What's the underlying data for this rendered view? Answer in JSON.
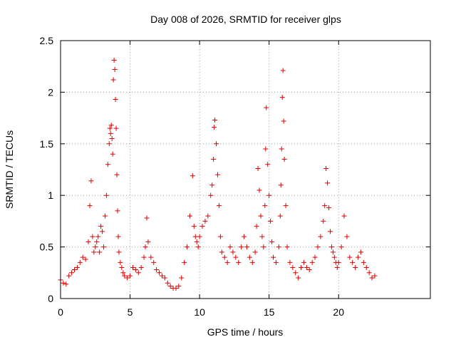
{
  "chart_data": {
    "type": "scatter",
    "title": "Day 008 of 2026, SRMTID for receiver glps",
    "xlabel": "GPS time / hours",
    "ylabel": "SRMTID / TECUs",
    "xlim": [
      0,
      26.6
    ],
    "ylim": [
      0,
      2.5
    ],
    "xticks": [
      0,
      5,
      10,
      15,
      20
    ],
    "yticks": [
      0,
      0.5,
      1,
      1.5,
      2,
      2.5
    ],
    "xtick_labels": [
      "0",
      "5",
      "10",
      "15",
      "20"
    ],
    "ytick_labels": [
      "0",
      "0.5",
      "1",
      "1.5",
      "2",
      "2.5"
    ],
    "grid": true,
    "marker": "+",
    "color": "#e00000",
    "series": [
      {
        "name": "SRMTID",
        "x": [
          0.0,
          0.2,
          0.4,
          0.6,
          0.8,
          1.0,
          1.2,
          1.4,
          1.6,
          1.8,
          2.0,
          2.1,
          2.2,
          2.3,
          2.4,
          2.5,
          2.6,
          2.7,
          2.8,
          2.9,
          3.0,
          3.1,
          3.2,
          3.3,
          3.4,
          3.5,
          3.55,
          3.6,
          3.65,
          3.7,
          3.75,
          3.8,
          3.85,
          3.9,
          3.95,
          4.0,
          4.05,
          4.1,
          4.15,
          4.2,
          4.3,
          4.4,
          4.5,
          4.6,
          4.8,
          5.0,
          5.2,
          5.4,
          5.6,
          5.8,
          6.0,
          6.1,
          6.2,
          6.3,
          6.5,
          6.7,
          6.9,
          7.1,
          7.3,
          7.5,
          7.7,
          7.9,
          8.1,
          8.3,
          8.5,
          8.7,
          8.9,
          9.1,
          9.3,
          9.5,
          9.6,
          9.7,
          9.8,
          9.9,
          10.0,
          10.2,
          10.4,
          10.6,
          10.8,
          10.9,
          11.0,
          11.05,
          11.1,
          11.2,
          11.3,
          11.4,
          11.5,
          11.6,
          11.8,
          12.0,
          12.2,
          12.4,
          12.6,
          12.8,
          13.0,
          13.2,
          13.4,
          13.6,
          13.8,
          14.0,
          14.1,
          14.2,
          14.3,
          14.4,
          14.5,
          14.6,
          14.7,
          14.75,
          14.8,
          14.9,
          15.0,
          15.1,
          15.2,
          15.3,
          15.5,
          15.7,
          15.8,
          15.85,
          15.9,
          15.95,
          16.0,
          16.05,
          16.1,
          16.2,
          16.3,
          16.5,
          16.7,
          16.9,
          17.1,
          17.3,
          17.5,
          17.7,
          17.9,
          18.1,
          18.3,
          18.5,
          18.7,
          18.9,
          19.0,
          19.1,
          19.2,
          19.3,
          19.4,
          19.5,
          19.6,
          19.7,
          19.8,
          19.9,
          20.0,
          20.2,
          20.4,
          20.6,
          20.8,
          21.0,
          21.2,
          21.4,
          21.6,
          21.8,
          22.0,
          22.2,
          22.4,
          22.6
        ],
        "y": [
          0.18,
          0.15,
          0.14,
          0.22,
          0.25,
          0.28,
          0.3,
          0.35,
          0.4,
          0.38,
          0.55,
          0.9,
          1.14,
          0.6,
          0.45,
          0.5,
          0.55,
          0.6,
          0.45,
          0.7,
          0.65,
          0.5,
          0.8,
          1.0,
          1.3,
          1.5,
          1.65,
          1.6,
          1.68,
          1.55,
          1.4,
          2.12,
          2.31,
          2.22,
          1.93,
          1.65,
          1.2,
          0.85,
          0.6,
          0.45,
          0.35,
          0.3,
          0.25,
          0.22,
          0.2,
          0.22,
          0.3,
          0.28,
          0.25,
          0.3,
          0.4,
          0.5,
          0.78,
          0.55,
          0.4,
          0.35,
          0.28,
          0.25,
          0.22,
          0.2,
          0.15,
          0.12,
          0.1,
          0.1,
          0.12,
          0.2,
          0.35,
          0.5,
          0.8,
          1.19,
          0.7,
          0.6,
          0.55,
          0.5,
          0.6,
          0.7,
          0.75,
          0.8,
          1.0,
          1.1,
          1.35,
          1.66,
          1.73,
          1.5,
          1.2,
          0.9,
          0.6,
          0.45,
          0.4,
          0.35,
          0.5,
          0.45,
          0.4,
          0.35,
          0.5,
          0.6,
          0.5,
          0.4,
          0.35,
          0.45,
          0.7,
          1.26,
          1.05,
          0.8,
          0.6,
          0.5,
          0.9,
          1.45,
          1.85,
          1.3,
          1.0,
          0.75,
          0.55,
          0.4,
          0.35,
          0.5,
          0.8,
          1.1,
          1.45,
          1.95,
          2.21,
          1.72,
          1.35,
          0.9,
          0.5,
          0.35,
          0.3,
          0.25,
          0.2,
          0.3,
          0.35,
          0.3,
          0.28,
          0.35,
          0.4,
          0.5,
          0.6,
          0.75,
          0.9,
          1.26,
          1.12,
          0.88,
          0.65,
          0.5,
          0.45,
          0.4,
          0.35,
          0.3,
          0.35,
          0.5,
          0.8,
          0.6,
          0.4,
          0.35,
          0.3,
          0.4,
          0.45,
          0.35,
          0.3,
          0.25,
          0.2,
          0.22
        ]
      }
    ]
  }
}
